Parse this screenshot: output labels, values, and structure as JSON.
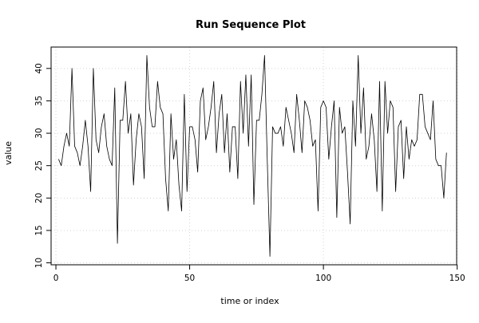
{
  "chart_data": {
    "type": "line",
    "title": "Run Sequence Plot",
    "xlabel": "time or index",
    "ylabel": "value",
    "xlim": [
      -1.8,
      149.8
    ],
    "ylim": [
      9.7,
      43.3
    ],
    "xticks": [
      0,
      50,
      100,
      150
    ],
    "yticks": [
      10,
      15,
      20,
      25,
      30,
      35,
      40
    ],
    "grid": true,
    "series": [
      {
        "values": [
          26,
          25,
          28,
          30,
          28,
          40,
          28,
          27,
          25,
          28,
          32,
          28,
          21,
          40,
          29,
          27,
          31,
          33,
          28,
          26,
          25,
          37,
          13,
          32,
          32,
          38,
          30,
          33,
          22,
          29,
          33,
          31,
          23,
          42,
          34,
          31,
          31,
          38,
          34,
          33,
          23,
          18,
          33,
          26,
          29,
          22,
          18,
          36,
          21,
          31,
          31,
          29,
          24,
          35,
          37,
          29,
          31,
          34,
          38,
          27,
          33,
          36,
          27,
          33,
          24,
          31,
          31,
          23,
          38,
          30,
          39,
          28,
          39,
          19,
          32,
          32,
          36,
          42,
          26,
          11,
          31,
          30,
          30,
          31,
          28,
          34,
          32,
          30,
          27,
          36,
          32,
          27,
          35,
          34,
          32,
          28,
          29,
          18,
          34,
          35,
          34,
          26,
          31,
          35,
          17,
          34,
          30,
          31,
          24,
          16,
          35,
          28,
          42,
          30,
          37,
          26,
          28,
          33,
          29,
          21,
          38,
          18,
          38,
          30,
          35,
          34,
          21,
          31,
          32,
          23,
          31,
          26,
          29,
          28,
          29,
          36,
          36,
          31,
          30,
          29,
          35,
          26,
          25,
          25,
          20,
          27
        ]
      }
    ]
  }
}
